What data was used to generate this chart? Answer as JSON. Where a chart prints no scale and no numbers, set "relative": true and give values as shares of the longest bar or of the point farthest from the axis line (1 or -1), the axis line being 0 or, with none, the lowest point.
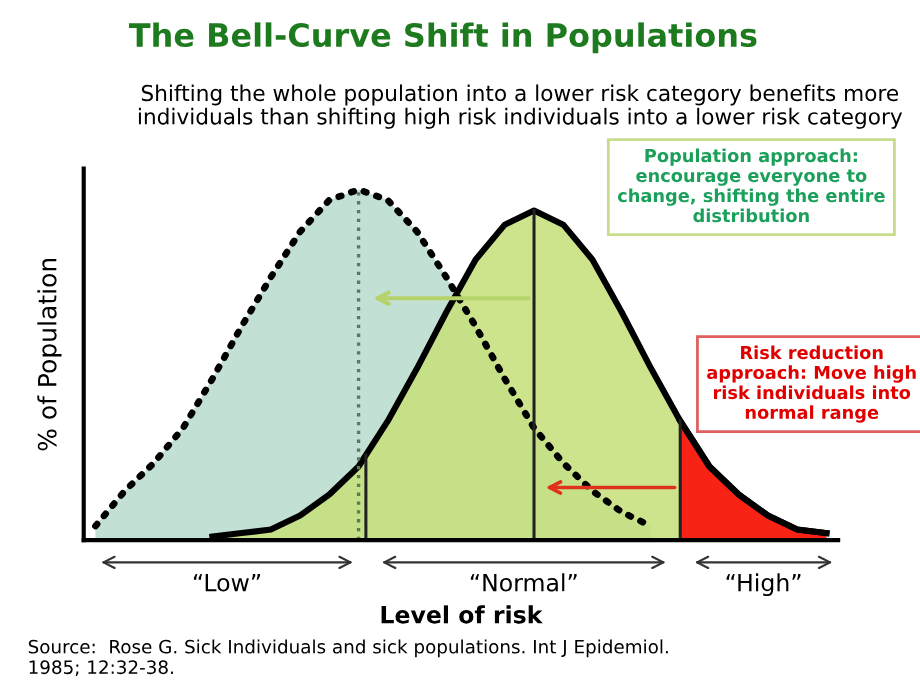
{
  "chart_data": {
    "type": "area",
    "title": "The Bell-Curve Shift in Populations",
    "subtitle": "Shifting the whole population into a lower risk category benefits more individuals than shifting high risk individuals into a lower risk category",
    "xlabel": "Level of risk",
    "ylabel": "% of Population",
    "relative": true,
    "categories": [
      null,
      null,
      null,
      null,
      null,
      null,
      null,
      null,
      null,
      null,
      null,
      null,
      null,
      null,
      null,
      null,
      null,
      null,
      null,
      null,
      null,
      null,
      null,
      null,
      null,
      null
    ],
    "series": [
      {
        "color": "#b9dacd",
        "line_style": "dotted",
        "values": [
          0.04,
          0.14,
          0.22,
          0.32,
          0.46,
          0.61,
          0.75,
          0.88,
          0.97,
          1,
          0.97,
          0.88,
          0.75,
          0.61,
          0.46,
          0.32,
          0.22,
          0.14,
          0.08,
          0.04,
          null,
          null,
          null,
          null,
          null,
          null
        ]
      },
      {
        "color": "#c5df78",
        "line_style": "solid",
        "values": [
          null,
          null,
          null,
          null,
          0.01,
          0.02,
          0.03,
          0.07,
          0.13,
          0.21,
          0.34,
          0.49,
          0.65,
          0.8,
          0.9,
          0.94,
          0.9,
          0.8,
          0.65,
          0.49,
          0.34,
          0.21,
          0.13,
          0.07,
          0.03,
          0.02
        ]
      },
      {
        "color": "#ff0000",
        "line_style": "solid",
        "values": [
          null,
          null,
          null,
          null,
          null,
          null,
          null,
          null,
          null,
          null,
          null,
          null,
          null,
          null,
          null,
          null,
          null,
          null,
          null,
          null,
          0.34,
          0.21,
          0.13,
          0.07,
          0.03,
          0.02
        ]
      }
    ],
    "annotations": [
      "“Low”",
      "“Normal”",
      "“High”",
      "Population approach: encourage everyone to change, shifting the entire distribution",
      "Risk reduction approach: Move high risk individuals into normal range",
      "Source:  Rose G. Sick Individuals and sick populations. Int J Epidemiol. 1985; 12:32-38."
    ]
  }
}
